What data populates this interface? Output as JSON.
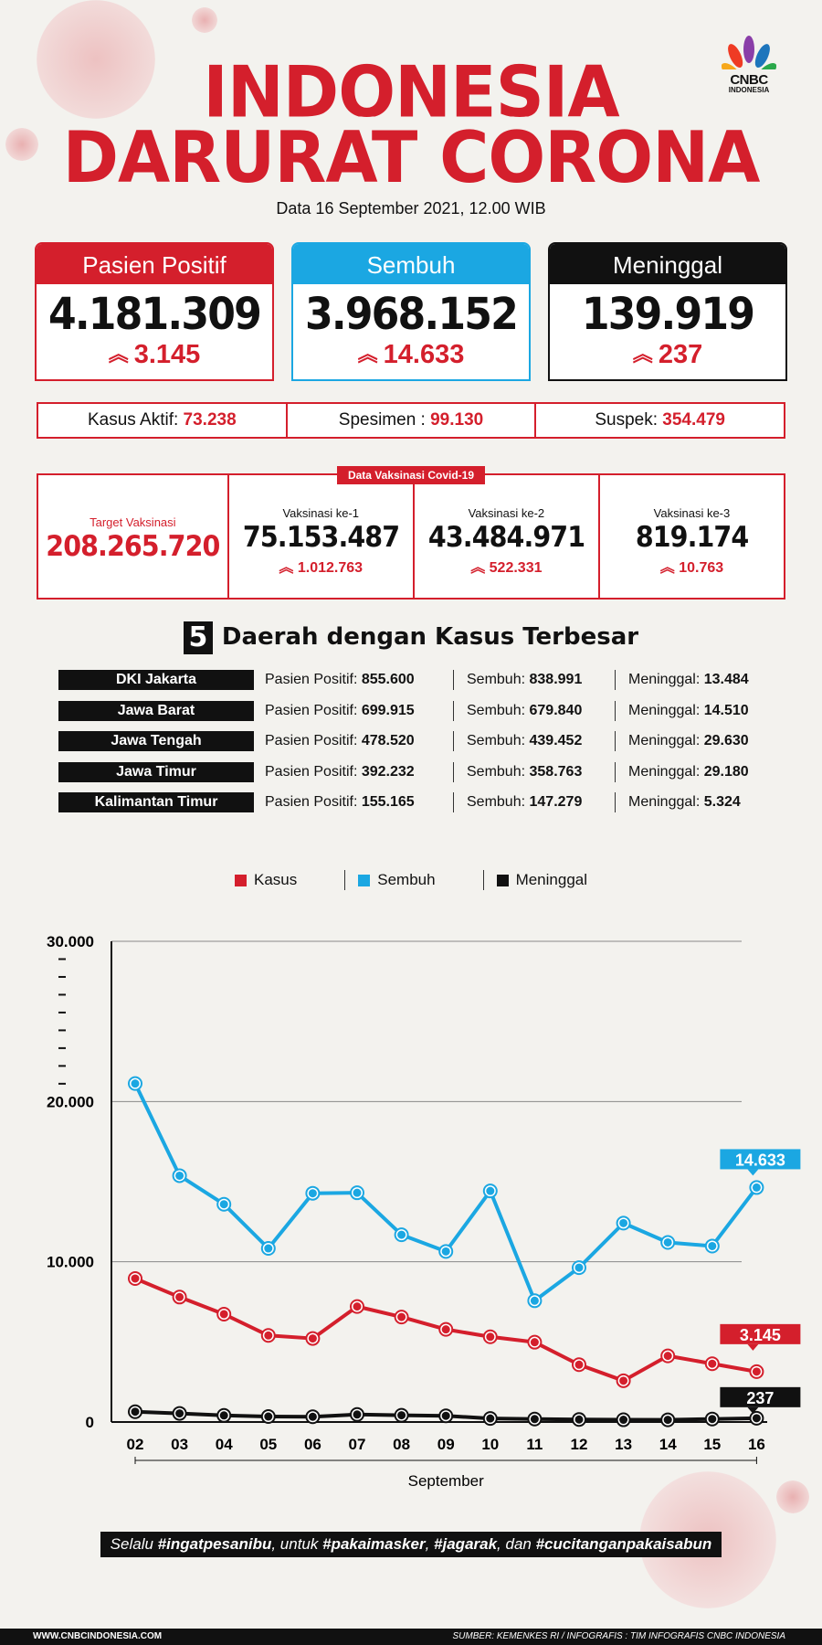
{
  "header": {
    "title_line1": "INDONESIA",
    "title_line2": "DARURAT CORONA",
    "date": "Data 16 September 2021, 12.00 WIB",
    "logo_text": "CNBC",
    "logo_sub": "INDONESIA"
  },
  "stats": [
    {
      "label": "Pasien Positif",
      "value": "4.181.309",
      "delta": "3.145",
      "color": "#d41f2c"
    },
    {
      "label": "Sembuh",
      "value": "3.968.152",
      "delta": "14.633",
      "color": "#1ba7e2"
    },
    {
      "label": "Meninggal",
      "value": "139.919",
      "delta": "237",
      "color": "#111111"
    }
  ],
  "info": [
    {
      "label": "Kasus Aktif:",
      "value": "73.238"
    },
    {
      "label": "Spesimen :",
      "value": "99.130"
    },
    {
      "label": "Suspek:",
      "value": "354.479"
    }
  ],
  "vaksin": {
    "tag": "Data Vaksinasi Covid-19",
    "target_label": "Target Vaksinasi",
    "target_value": "208.265.720",
    "doses": [
      {
        "label": "Vaksinasi ke-1",
        "value": "75.153.487",
        "delta": "1.012.763"
      },
      {
        "label": "Vaksinasi ke-2",
        "value": "43.484.971",
        "delta": "522.331"
      },
      {
        "label": "Vaksinasi ke-3",
        "value": "819.174",
        "delta": "10.763"
      }
    ]
  },
  "daerah": {
    "number": "5",
    "title": "Daerah dengan Kasus Terbesar",
    "positif_label": "Pasien Positif:",
    "sembuh_label": "Sembuh:",
    "meninggal_label": "Meninggal:",
    "rows": [
      {
        "name": "DKI Jakarta",
        "positif": "855.600",
        "sembuh": "838.991",
        "meninggal": "13.484"
      },
      {
        "name": "Jawa Barat",
        "positif": "699.915",
        "sembuh": "679.840",
        "meninggal": "14.510"
      },
      {
        "name": "Jawa Tengah",
        "positif": "478.520",
        "sembuh": "439.452",
        "meninggal": "29.630"
      },
      {
        "name": "Jawa Timur",
        "positif": "392.232",
        "sembuh": "358.763",
        "meninggal": "29.180"
      },
      {
        "name": "Kalimantan Timur",
        "positif": "155.165",
        "sembuh": "147.279",
        "meninggal": "5.324"
      }
    ]
  },
  "chart_data": {
    "type": "line",
    "xlabel": "September",
    "categories": [
      "02",
      "03",
      "04",
      "05",
      "06",
      "07",
      "08",
      "09",
      "10",
      "11",
      "12",
      "13",
      "14",
      "15",
      "16"
    ],
    "ylim": [
      0,
      30000
    ],
    "yticks": [
      0,
      10000,
      20000,
      30000
    ],
    "ytick_labels": [
      "0",
      "10.000",
      "20.000",
      "30.000"
    ],
    "grid": true,
    "legend_position": "top-center",
    "series": [
      {
        "name": "Kasus",
        "color": "#d41f2c",
        "values": [
          8955,
          7797,
          6731,
          5403,
          5215,
          7208,
          6553,
          5781,
          5317,
          4981,
          3578,
          2577,
          4128,
          3637,
          3145
        ],
        "end_label": "3.145"
      },
      {
        "name": "Sembuh",
        "color": "#1ba7e2",
        "values": [
          21123,
          15374,
          13590,
          10836,
          14276,
          14306,
          11686,
          10647,
          14420,
          7569,
          9632,
          12413,
          11208,
          10982,
          14633
        ],
        "end_label": "14.633"
      },
      {
        "name": "Meninggal",
        "color": "#111111",
        "values": [
          643,
          538,
          411,
          342,
          328,
          469,
          421,
          386,
          221,
          185,
          157,
          140,
          138,
          188,
          237
        ],
        "end_label": "237"
      }
    ]
  },
  "tagline": {
    "p1": "Selalu ",
    "h1": "#ingatpesanibu",
    "p2": ", untuk ",
    "h2": "#pakaimasker",
    "p3": ", ",
    "h3": "#jagarak",
    "p4": ", dan ",
    "h4": "#cucitanganpakaisabun"
  },
  "footer": {
    "left": "WWW.CNBCINDONESIA.COM",
    "right": "SUMBER: KEMENKES RI / INFOGRAFIS : TIM INFOGRAFIS CNBC INDONESIA"
  }
}
